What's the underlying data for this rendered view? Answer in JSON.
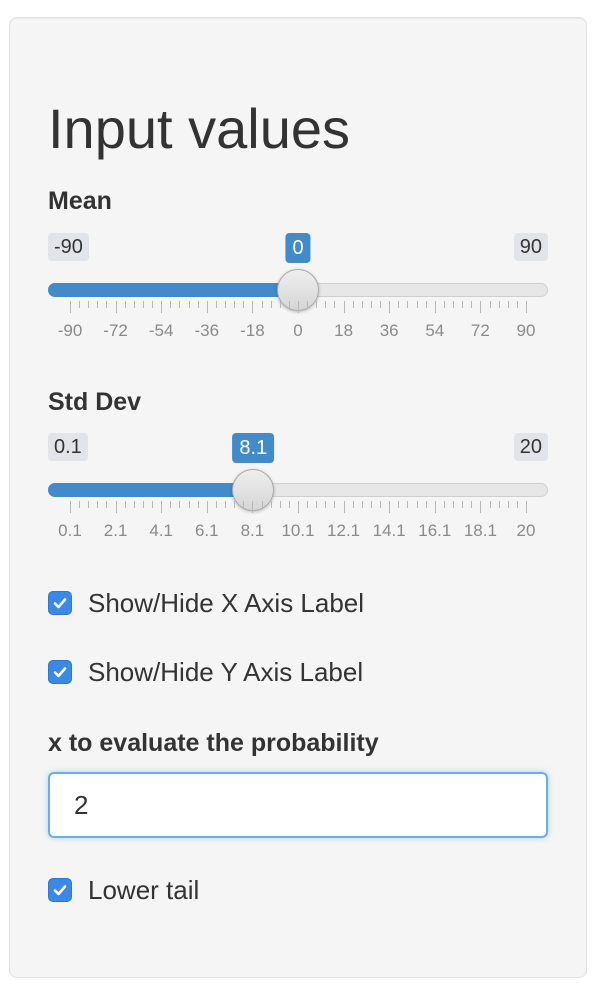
{
  "panel": {
    "title": "Input values"
  },
  "mean_slider": {
    "label": "Mean",
    "min": -90,
    "max": 90,
    "value": 0,
    "min_label": "-90",
    "max_label": "90",
    "value_label": "0",
    "tick_labels": [
      "-90",
      "-72",
      "-54",
      "-36",
      "-18",
      "0",
      "18",
      "36",
      "54",
      "72",
      "90"
    ],
    "accent_color": "#428bca"
  },
  "sd_slider": {
    "label": "Std Dev",
    "min": 0.1,
    "max": 20,
    "value": 8.1,
    "min_label": "0.1",
    "max_label": "20",
    "value_label": "8.1",
    "tick_labels": [
      "0.1",
      "2.1",
      "4.1",
      "6.1",
      "8.1",
      "10.1",
      "12.1",
      "14.1",
      "16.1",
      "18.1",
      "20"
    ],
    "accent_color": "#428bca"
  },
  "checkboxes": {
    "x_axis": {
      "label": "Show/Hide X Axis Label",
      "checked": true
    },
    "y_axis": {
      "label": "Show/Hide Y Axis Label",
      "checked": true
    },
    "lower_tail": {
      "label": "Lower tail",
      "checked": true
    }
  },
  "x_input": {
    "label": "x to evaluate the probability",
    "value": "2"
  },
  "icons": {
    "checkbox": "checkmark-icon",
    "slider_handle": "slider-handle"
  }
}
